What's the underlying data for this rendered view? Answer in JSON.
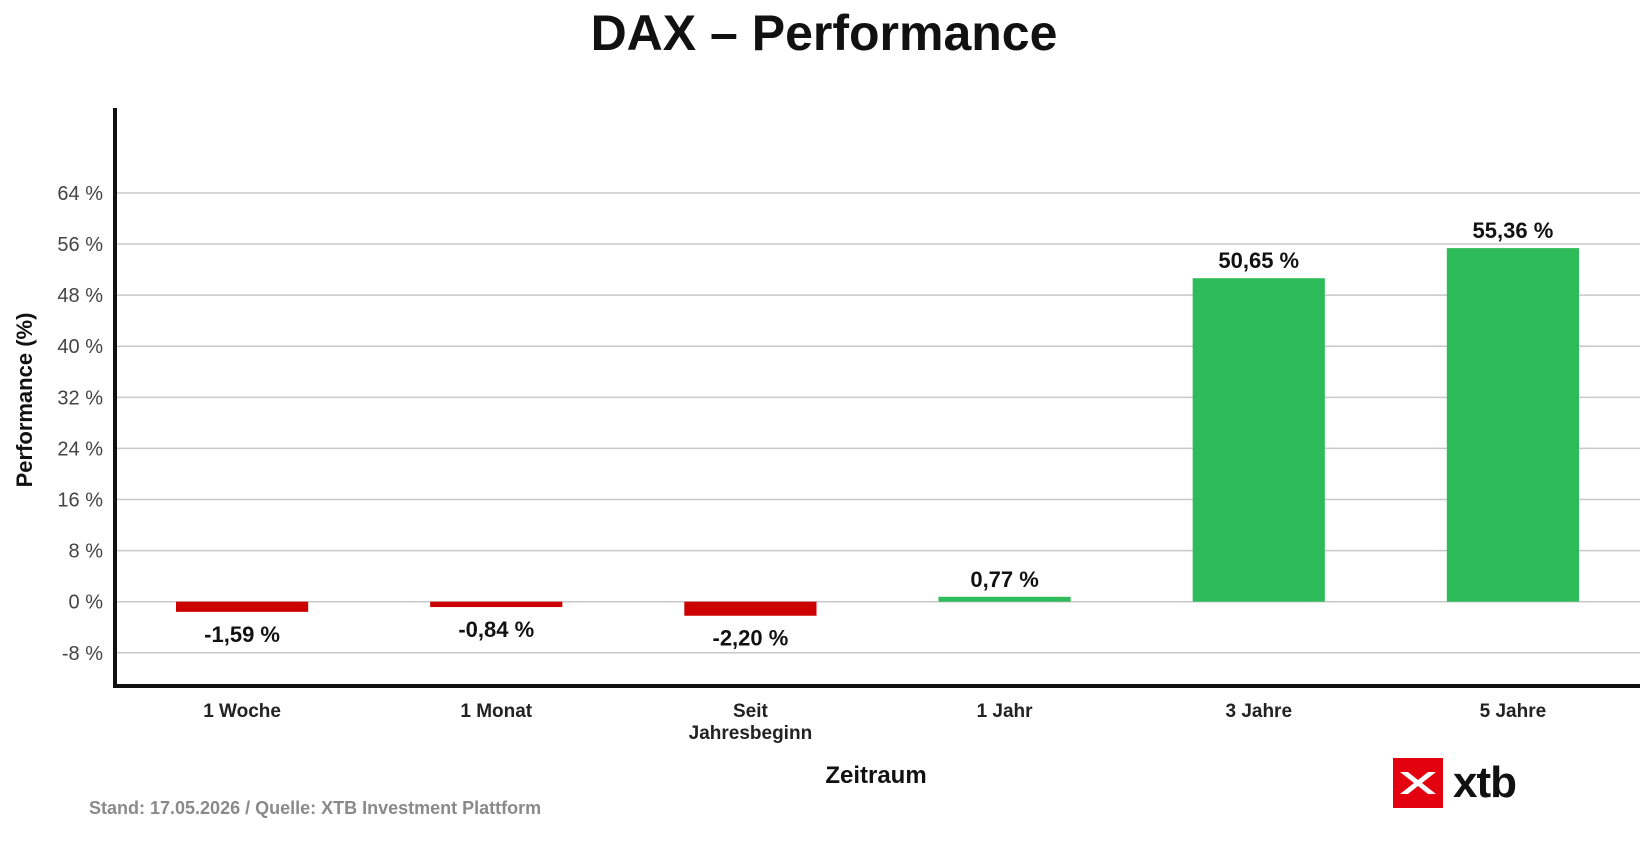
{
  "colors": {
    "positive": "#2ebb5a",
    "negative": "#cc0000",
    "grid": "#c8c8c8",
    "axis": "#111111",
    "brand": "#e3000f"
  },
  "chart_data": {
    "type": "bar",
    "title": "DAX – Performance",
    "xlabel": "Zeitraum",
    "ylabel": "Performance (%)",
    "categories": [
      [
        "1 Woche"
      ],
      [
        "1 Monat"
      ],
      [
        "Seit",
        "Jahresbeginn"
      ],
      [
        "1 Jahr"
      ],
      [
        "3 Jahre"
      ],
      [
        "5 Jahre"
      ]
    ],
    "values": [
      -1.59,
      -0.84,
      -2.2,
      0.77,
      50.65,
      55.36
    ],
    "value_labels": [
      "-1,59 %",
      "-0,84 %",
      "-2,20 %",
      "0,77 %",
      "50,65 %",
      "55,36 %"
    ],
    "yticks": [
      -8,
      0,
      8,
      16,
      24,
      32,
      40,
      48,
      56,
      64
    ],
    "ytick_labels": [
      "-8 %",
      "0 %",
      "8 %",
      "16 %",
      "24 %",
      "32 %",
      "40 %",
      "48 %",
      "56 %",
      "64 %"
    ],
    "ylim": [
      -13.2,
      77.3
    ],
    "grid": true,
    "legend": "none"
  },
  "footnote": "Stand: 17.05.2026 / Quelle: XTB Investment Plattform",
  "logo": {
    "text": "xtb",
    "icon": "xtb-x-logo-icon"
  }
}
